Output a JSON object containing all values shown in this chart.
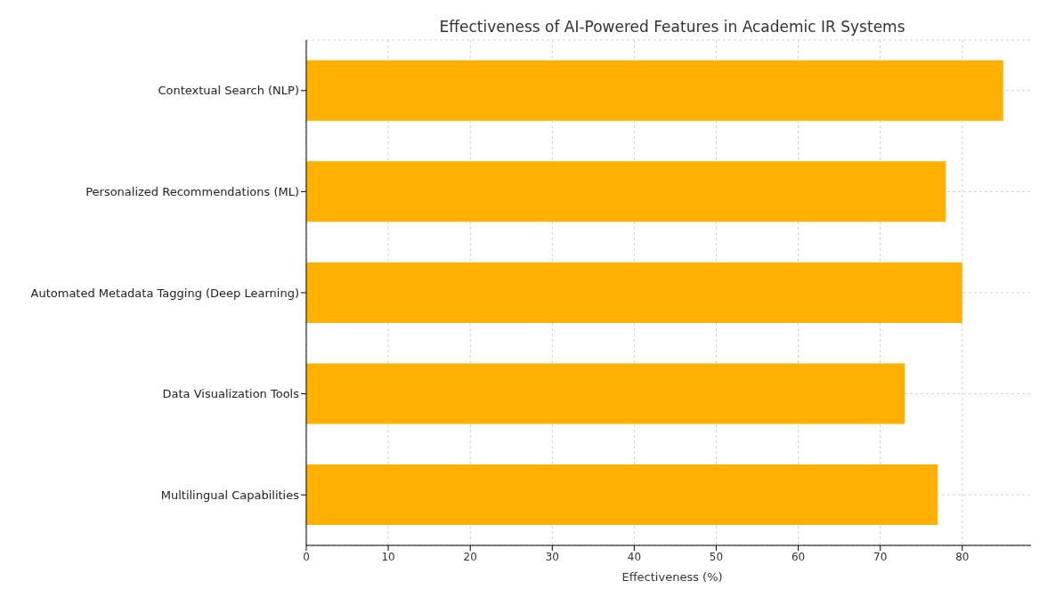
{
  "chart_data": {
    "type": "bar",
    "orientation": "horizontal",
    "title": "Effectiveness of AI-Powered Features in Academic IR Systems",
    "xlabel": "Effectiveness (%)",
    "categories": [
      "Contextual Search (NLP)",
      "Personalized Recommendations (ML)",
      "Automated Metadata Tagging (Deep Learning)",
      "Data Visualization Tools",
      "Multilingual Capabilities"
    ],
    "values": [
      85,
      78,
      80,
      73,
      77
    ],
    "color": "#ffb000",
    "xlim": [
      0,
      89.25
    ],
    "xticks": [
      0,
      10,
      20,
      30,
      40,
      50,
      60,
      70,
      80
    ],
    "grid": true
  }
}
